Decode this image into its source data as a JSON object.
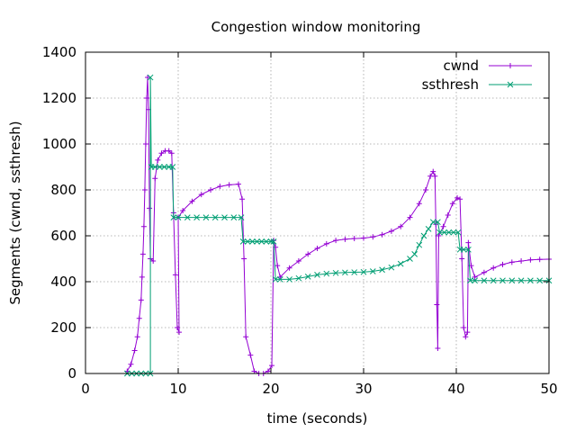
{
  "chart_data": {
    "type": "line",
    "title": "Congestion window monitoring",
    "xlabel": "time (seconds)",
    "ylabel": "Segments (cwnd, ssthresh)",
    "xlim": [
      0,
      50
    ],
    "ylim": [
      0,
      1400
    ],
    "xticks": [
      "0",
      "10",
      "20",
      "30",
      "40",
      "50"
    ],
    "yticks": [
      "0",
      "200",
      "400",
      "600",
      "800",
      "1000",
      "1200",
      "1400"
    ],
    "grid": true,
    "legend_position": "top-right",
    "series": [
      {
        "name": "cwnd",
        "color": "#9400d3",
        "marker": "plus",
        "points": [
          [
            4.5,
            10
          ],
          [
            4.9,
            40
          ],
          [
            5.3,
            100
          ],
          [
            5.6,
            160
          ],
          [
            5.8,
            240
          ],
          [
            6.0,
            320
          ],
          [
            6.1,
            420
          ],
          [
            6.2,
            520
          ],
          [
            6.3,
            640
          ],
          [
            6.4,
            800
          ],
          [
            6.5,
            1000
          ],
          [
            6.6,
            1200
          ],
          [
            6.7,
            1290
          ],
          [
            6.8,
            1150
          ],
          [
            6.9,
            720
          ],
          [
            7.0,
            500
          ],
          [
            7.3,
            490
          ],
          [
            7.5,
            850
          ],
          [
            7.8,
            930
          ],
          [
            8.2,
            960
          ],
          [
            8.6,
            970
          ],
          [
            9.0,
            970
          ],
          [
            9.3,
            960
          ],
          [
            9.5,
            700
          ],
          [
            9.7,
            430
          ],
          [
            9.9,
            200
          ],
          [
            10.1,
            180
          ],
          [
            10.0,
            680
          ],
          [
            10.5,
            710
          ],
          [
            11.5,
            750
          ],
          [
            12.5,
            780
          ],
          [
            13.5,
            800
          ],
          [
            14.5,
            815
          ],
          [
            15.5,
            822
          ],
          [
            16.5,
            825
          ],
          [
            16.9,
            760
          ],
          [
            17.1,
            500
          ],
          [
            17.3,
            160
          ],
          [
            17.8,
            80
          ],
          [
            18.2,
            10
          ],
          [
            18.7,
            0
          ],
          [
            19.2,
            0
          ],
          [
            19.7,
            10
          ],
          [
            20.1,
            35
          ],
          [
            20.3,
            580
          ],
          [
            20.5,
            550
          ],
          [
            20.7,
            470
          ],
          [
            21.0,
            420
          ],
          [
            22.0,
            460
          ],
          [
            23.0,
            490
          ],
          [
            24.0,
            520
          ],
          [
            25.0,
            545
          ],
          [
            26.0,
            565
          ],
          [
            27.0,
            580
          ],
          [
            28.0,
            585
          ],
          [
            29.0,
            588
          ],
          [
            30.0,
            590
          ],
          [
            31.0,
            595
          ],
          [
            32.0,
            605
          ],
          [
            33.0,
            620
          ],
          [
            34.0,
            640
          ],
          [
            35.0,
            680
          ],
          [
            36.0,
            740
          ],
          [
            36.7,
            800
          ],
          [
            37.2,
            860
          ],
          [
            37.5,
            880
          ],
          [
            37.7,
            860
          ],
          [
            37.8,
            650
          ],
          [
            37.9,
            300
          ],
          [
            38.0,
            110
          ],
          [
            38.1,
            600
          ],
          [
            38.6,
            640
          ],
          [
            39.1,
            690
          ],
          [
            39.6,
            740
          ],
          [
            40.1,
            765
          ],
          [
            40.4,
            760
          ],
          [
            40.6,
            500
          ],
          [
            40.8,
            200
          ],
          [
            41.0,
            160
          ],
          [
            41.2,
            180
          ],
          [
            41.3,
            570
          ],
          [
            41.6,
            470
          ],
          [
            42.0,
            420
          ],
          [
            43.0,
            440
          ],
          [
            44.0,
            460
          ],
          [
            45.0,
            475
          ],
          [
            46.0,
            485
          ],
          [
            47.0,
            490
          ],
          [
            48.0,
            495
          ],
          [
            49.0,
            497
          ],
          [
            50.0,
            498
          ]
        ]
      },
      {
        "name": "ssthresh",
        "color": "#009e73",
        "marker": "cross",
        "points": [
          [
            4.5,
            0
          ],
          [
            5.0,
            0
          ],
          [
            5.5,
            0
          ],
          [
            6.0,
            0
          ],
          [
            6.5,
            0
          ],
          [
            7.0,
            0
          ],
          [
            7.0,
            1290
          ],
          [
            7.1,
            900
          ],
          [
            7.5,
            900
          ],
          [
            8.0,
            900
          ],
          [
            8.5,
            900
          ],
          [
            9.0,
            900
          ],
          [
            9.4,
            900
          ],
          [
            9.5,
            680
          ],
          [
            10.0,
            680
          ],
          [
            11.0,
            680
          ],
          [
            12.0,
            680
          ],
          [
            13.0,
            680
          ],
          [
            14.0,
            680
          ],
          [
            15.0,
            680
          ],
          [
            16.0,
            680
          ],
          [
            16.8,
            680
          ],
          [
            17.0,
            575
          ],
          [
            17.5,
            575
          ],
          [
            18.0,
            575
          ],
          [
            18.5,
            575
          ],
          [
            19.0,
            575
          ],
          [
            19.5,
            575
          ],
          [
            20.0,
            575
          ],
          [
            20.3,
            575
          ],
          [
            20.5,
            410
          ],
          [
            21.0,
            410
          ],
          [
            22.0,
            410
          ],
          [
            23.0,
            415
          ],
          [
            24.0,
            422
          ],
          [
            25.0,
            430
          ],
          [
            26.0,
            435
          ],
          [
            27.0,
            438
          ],
          [
            28.0,
            440
          ],
          [
            29.0,
            441
          ],
          [
            30.0,
            442
          ],
          [
            31.0,
            445
          ],
          [
            32.0,
            452
          ],
          [
            33.0,
            462
          ],
          [
            34.0,
            478
          ],
          [
            35.0,
            500
          ],
          [
            35.5,
            520
          ],
          [
            36.0,
            560
          ],
          [
            36.5,
            600
          ],
          [
            37.0,
            630
          ],
          [
            37.5,
            660
          ],
          [
            38.0,
            660
          ],
          [
            38.2,
            615
          ],
          [
            38.7,
            615
          ],
          [
            39.2,
            615
          ],
          [
            39.7,
            615
          ],
          [
            40.2,
            615
          ],
          [
            40.4,
            540
          ],
          [
            40.8,
            540
          ],
          [
            41.3,
            540
          ],
          [
            41.5,
            405
          ],
          [
            42.0,
            405
          ],
          [
            43.0,
            405
          ],
          [
            44.0,
            405
          ],
          [
            45.0,
            405
          ],
          [
            46.0,
            405
          ],
          [
            47.0,
            405
          ],
          [
            48.0,
            405
          ],
          [
            49.0,
            405
          ],
          [
            50.0,
            405
          ]
        ]
      }
    ]
  }
}
